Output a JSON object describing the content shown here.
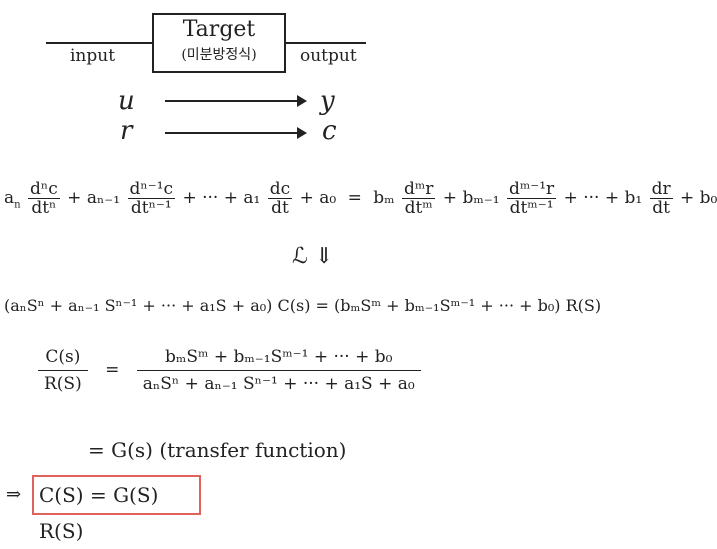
{
  "diagram": {
    "target_title": "Target",
    "target_subtitle": "(미분방정식)",
    "input_label": "input",
    "output_label": "output",
    "signal_input_1": "u",
    "signal_output_1": "y",
    "signal_input_2": "r",
    "signal_output_2": "c"
  },
  "equations": {
    "ode_lhs_a_n": "a",
    "ode_frac_1_num": "dⁿc",
    "ode_frac_1_den": "dtⁿ",
    "ode_plus_a_n1": "+ aₙ₋₁",
    "ode_frac_2_num": "dⁿ⁻¹c",
    "ode_frac_2_den": "dtⁿ⁻¹",
    "ode_dots_a1": "+ ··· + a₁",
    "ode_frac_3_num": "dc",
    "ode_frac_3_den": "dt",
    "ode_a0": "+ a₀",
    "ode_equals": "=",
    "ode_b_m": "bₘ",
    "ode_frac_4_num": "dᵐr",
    "ode_frac_4_den": "dtᵐ",
    "ode_plus_b_m1": "+ bₘ₋₁",
    "ode_frac_5_num": "dᵐ⁻¹r",
    "ode_frac_5_den": "dtᵐ⁻¹",
    "ode_dots_b1": "+ ··· + b₁",
    "ode_frac_6_num": "dr",
    "ode_frac_6_den": "dt",
    "ode_b0": "+ b₀",
    "laplace_symbol": "ℒ ⇓",
    "laplace_eq": "(aₙSⁿ + aₙ₋₁ Sⁿ⁻¹ + ··· + a₁S + a₀) C(s) = (bₘSᵐ + bₘ₋₁Sᵐ⁻¹ + ··· + b₀) R(S)",
    "tf_lhs_num": "C(s)",
    "tf_lhs_den": "R(S)",
    "tf_equals": "=",
    "tf_rhs_num": "bₘSᵐ + bₘ₋₁Sᵐ⁻¹ + ··· + b₀",
    "tf_rhs_den": "aₙSⁿ + aₙ₋₁ Sⁿ⁻¹ + ··· + a₁S + a₀",
    "tf_result": "= G(s)  (transfer function)",
    "final_arrow": "⇒",
    "final_boxed": "C(S) = G(S) R(S)"
  },
  "colors": {
    "ink": "#222222",
    "highlight_box": "#e0625c"
  }
}
